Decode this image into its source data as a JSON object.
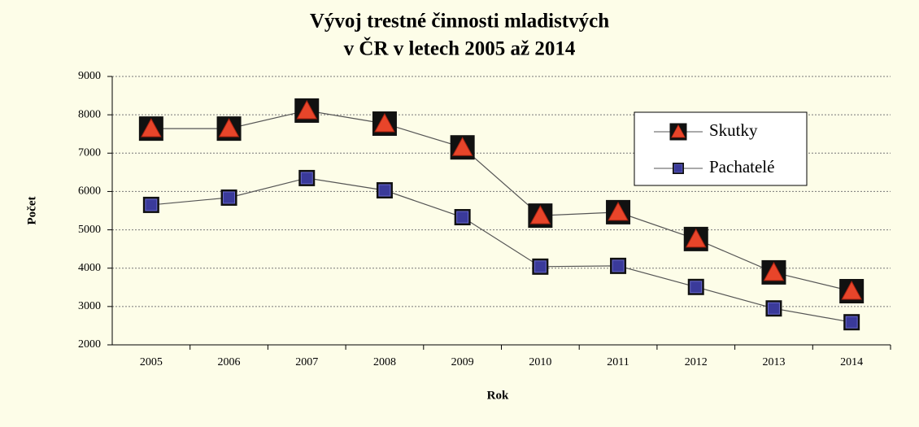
{
  "chart_data": {
    "type": "line",
    "title": [
      "Vývoj trestné činnosti mladistvých",
      "v ČR v letech 2005 až 2014"
    ],
    "xlabel": "Rok",
    "ylabel": "Počet",
    "categories": [
      "2005",
      "2006",
      "2007",
      "2008",
      "2009",
      "2010",
      "2011",
      "2012",
      "2013",
      "2014"
    ],
    "series": [
      {
        "name": "Skutky",
        "color": "#e8452a",
        "marker": "triangle",
        "values": [
          7640,
          7640,
          8110,
          7770,
          7150,
          5370,
          5460,
          4760,
          3890,
          3400
        ]
      },
      {
        "name": "Pachatelé",
        "color": "#3a3a9a",
        "marker": "square",
        "values": [
          5650,
          5840,
          6350,
          6030,
          5330,
          4040,
          4060,
          3510,
          2950,
          2590
        ]
      }
    ],
    "ylim": [
      2000,
      9000
    ],
    "yticks": [
      2000,
      3000,
      4000,
      5000,
      6000,
      7000,
      8000,
      9000
    ],
    "grid": true,
    "legend": "upper right"
  }
}
